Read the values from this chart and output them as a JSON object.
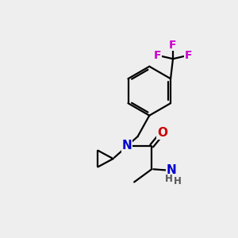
{
  "bg_color": "#eeeeee",
  "atom_colors": {
    "C": "#000000",
    "N": "#0000cc",
    "O": "#cc0000",
    "F": "#cc00cc",
    "H": "#555555"
  },
  "lw": 1.6,
  "fs": 10,
  "fs_small": 8.5
}
